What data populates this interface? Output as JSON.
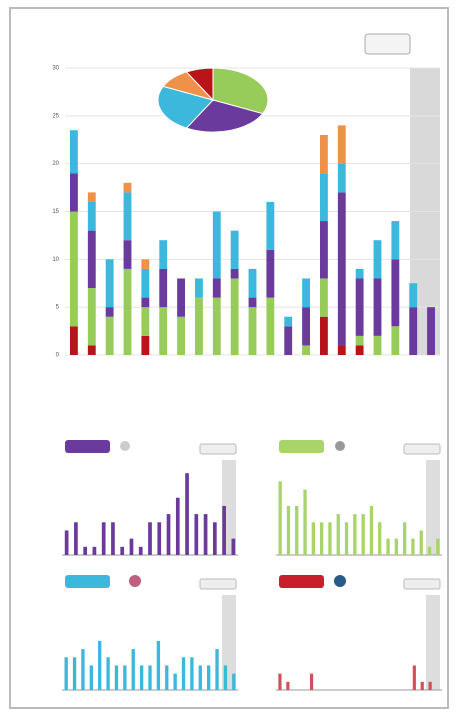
{
  "chart_data": [
    {
      "type": "bar",
      "stacked": true,
      "ylim": [
        0,
        30
      ],
      "yticks": [
        0,
        5,
        10,
        15,
        20,
        25,
        30
      ],
      "grid": true,
      "categories": [
        null,
        null,
        null,
        null,
        null,
        null,
        null,
        null,
        null,
        null,
        null,
        null,
        null,
        null,
        null,
        null,
        null,
        null,
        null,
        null,
        null
      ],
      "series": [
        {
          "color": "#b8141a",
          "values": [
            3,
            1,
            0,
            0,
            2,
            0,
            0,
            0,
            0,
            0,
            0,
            0,
            0,
            0,
            4,
            1,
            1,
            0,
            0,
            0,
            0
          ]
        },
        {
          "color": "#98cc5a",
          "values": [
            12,
            6,
            4,
            9,
            3,
            5,
            4,
            6,
            6,
            8,
            5,
            6,
            0,
            1,
            4,
            0,
            1,
            2,
            3,
            0,
            0
          ]
        },
        {
          "color": "#6a3a9c",
          "values": [
            4,
            6,
            1,
            3,
            1,
            4,
            4,
            0,
            2,
            1,
            1,
            5,
            3,
            4,
            6,
            16,
            6,
            6,
            7,
            5,
            5
          ]
        },
        {
          "color": "#3cb8dc",
          "values": [
            4.5,
            3,
            5,
            5,
            3,
            3,
            0,
            2,
            7,
            4,
            3,
            5,
            1,
            3,
            5,
            3,
            1,
            4,
            4,
            2.5,
            0
          ]
        },
        {
          "color": "#f0914a",
          "values": [
            0,
            1,
            0,
            1,
            1,
            0,
            0,
            0,
            0,
            0,
            0,
            0,
            0,
            0,
            4,
            4,
            0,
            0,
            0,
            0,
            0
          ]
        }
      ]
    },
    {
      "type": "pie",
      "values": [
        32,
        26,
        24,
        10,
        8
      ],
      "colors": [
        "#98cc5a",
        "#6a3a9c",
        "#3cb8dc",
        "#f0914a",
        "#b8141a"
      ]
    },
    {
      "type": "bar",
      "color": "#6a3a9c",
      "ylim": [
        0,
        11
      ],
      "values": [
        3,
        4,
        1,
        1,
        4,
        4,
        1,
        2,
        1,
        4,
        4,
        5,
        7,
        10,
        5,
        5,
        4,
        6,
        2
      ]
    },
    {
      "type": "bar",
      "color": "#a8d46a",
      "ylim": [
        0,
        11
      ],
      "values": [
        9,
        6,
        6,
        8,
        4,
        4,
        4,
        5,
        4,
        5,
        5,
        6,
        4,
        2,
        2,
        4,
        2,
        3,
        1,
        2
      ]
    },
    {
      "type": "bar",
      "color": "#3cb8dc",
      "ylim": [
        0,
        11
      ],
      "values": [
        4,
        4,
        5,
        3,
        6,
        4,
        3,
        3,
        5,
        3,
        3,
        6,
        3,
        2,
        4,
        4,
        3,
        3,
        5,
        3,
        2
      ]
    },
    {
      "type": "bar",
      "color": "#d0505a",
      "ylim": [
        0,
        11
      ],
      "values": [
        2,
        1,
        0,
        0,
        2,
        0,
        0,
        0,
        0,
        0,
        0,
        0,
        0,
        0,
        0,
        0,
        0,
        3,
        1,
        1,
        0
      ]
    }
  ]
}
